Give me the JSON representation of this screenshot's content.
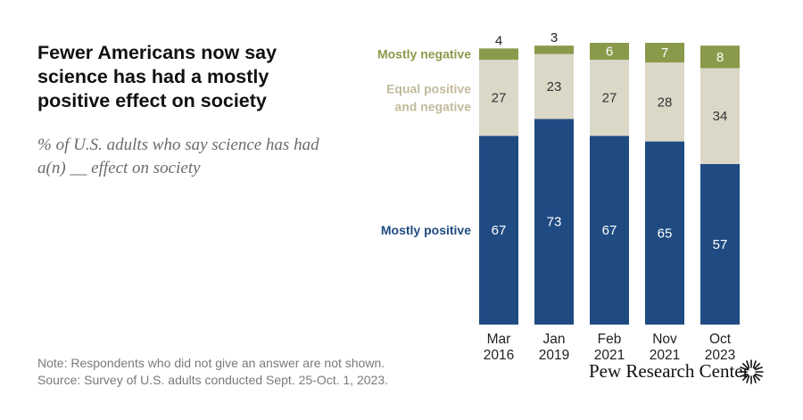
{
  "title": "Fewer Americans now say science has had a mostly positive effect on society",
  "subtitle": "% of U.S. adults who say science has had a(n) __ effect on society",
  "note": "Note: Respondents who did not give an answer are not shown.",
  "source": "Source: Survey of U.S. adults conducted Sept. 25-Oct. 1, 2023.",
  "brand": "Pew Research Center",
  "chart_data": {
    "type": "bar",
    "stacked": true,
    "categories": [
      [
        "Mar",
        "2016"
      ],
      [
        "Jan",
        "2019"
      ],
      [
        "Feb",
        "2021"
      ],
      [
        "Nov",
        "2021"
      ],
      [
        "Oct",
        "2023"
      ]
    ],
    "series": [
      {
        "name": "Mostly positive",
        "values": [
          67,
          73,
          67,
          65,
          57
        ],
        "color": "#1f4b82",
        "label_color": "#ffffff",
        "legend_lines": [
          "Mostly positive"
        ],
        "legend_color": "#1f4b82"
      },
      {
        "name": "Equal positive and negative",
        "values": [
          27,
          23,
          27,
          28,
          34
        ],
        "color": "#dcd8c8",
        "label_color": "#333333",
        "legend_lines": [
          "Equal positive",
          "and negative"
        ],
        "legend_color": "#c2bb9c"
      },
      {
        "name": "Mostly negative",
        "values": [
          4,
          3,
          6,
          7,
          8
        ],
        "color": "#8a9a4b",
        "label_color": "#ffffff",
        "legend_lines": [
          "Mostly negative"
        ],
        "legend_color": "#8a9a4b"
      }
    ],
    "ylim": [
      0,
      100
    ],
    "grid": false,
    "legend": "left of bars, aligned to segments"
  }
}
